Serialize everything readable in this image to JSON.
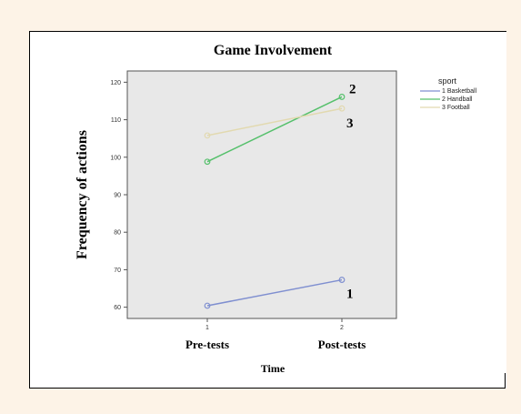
{
  "chart_data": {
    "type": "line",
    "title": "Game Involvement",
    "xlabel": "Time",
    "ylabel": "Frequency of actions",
    "categories": [
      "Pre-tests",
      "Post-tests"
    ],
    "x_ticks": [
      "1",
      "2"
    ],
    "ylim": [
      57,
      123
    ],
    "yticks": [
      60,
      70,
      80,
      90,
      100,
      110,
      120
    ],
    "grid": false,
    "background": "#e8e8e8",
    "legend": {
      "title": "sport",
      "position": "right",
      "entries": [
        "1 Basketball",
        "2 Handball",
        "3 Football"
      ]
    },
    "series": [
      {
        "name": "1 Basketball",
        "values": [
          60.4,
          67.3
        ],
        "color": "#7f8fd0",
        "annotation": "1"
      },
      {
        "name": "2 Handball",
        "values": [
          98.8,
          116.1
        ],
        "color": "#55c06b",
        "annotation": "2"
      },
      {
        "name": "3 Football",
        "values": [
          105.8,
          113.0
        ],
        "color": "#e2d9b0",
        "annotation": "3"
      }
    ]
  }
}
